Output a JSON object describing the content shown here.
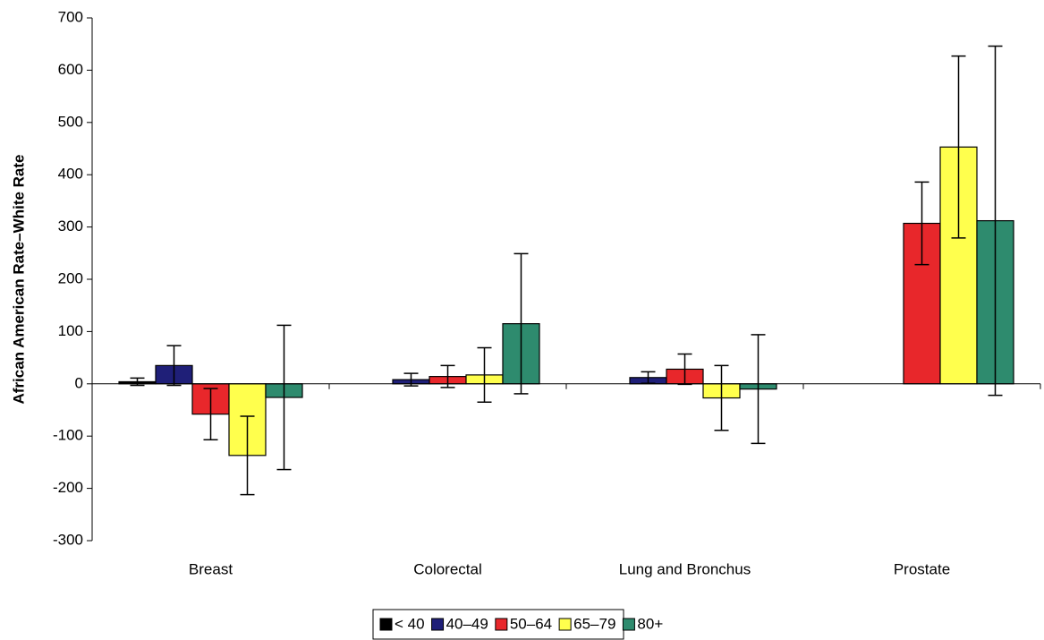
{
  "chart_data": {
    "type": "bar",
    "y_label": "African American Rate–White Rate",
    "categories": [
      "Breast",
      "Colorectal",
      "Lung and Bronchus",
      "Prostate"
    ],
    "series": [
      {
        "name": "< 40",
        "color": "#000000",
        "values": [
          4,
          null,
          null,
          null
        ],
        "errors": [
          7,
          null,
          null,
          null
        ]
      },
      {
        "name": "40–49",
        "color": "#1f1f78",
        "values": [
          35,
          8,
          12,
          null
        ],
        "errors": [
          38,
          12,
          11,
          null
        ]
      },
      {
        "name": "50–64",
        "color": "#e8272b",
        "values": [
          -58,
          14,
          28,
          307
        ],
        "errors": [
          49,
          21,
          29,
          79
        ]
      },
      {
        "name": "65–79",
        "color": "#ffff4d",
        "values": [
          -137,
          17,
          -27,
          453
        ],
        "errors": [
          75,
          52,
          62,
          174
        ]
      },
      {
        "name": "80+",
        "color": "#2e8b6e",
        "values": [
          -26,
          115,
          -10,
          312
        ],
        "errors": [
          138,
          134,
          104,
          334
        ]
      }
    ],
    "ylim": [
      -300,
      700
    ],
    "yticks": [
      -300,
      -200,
      -100,
      0,
      100,
      200,
      300,
      400,
      500,
      600,
      700
    ],
    "legend": "bottom"
  }
}
